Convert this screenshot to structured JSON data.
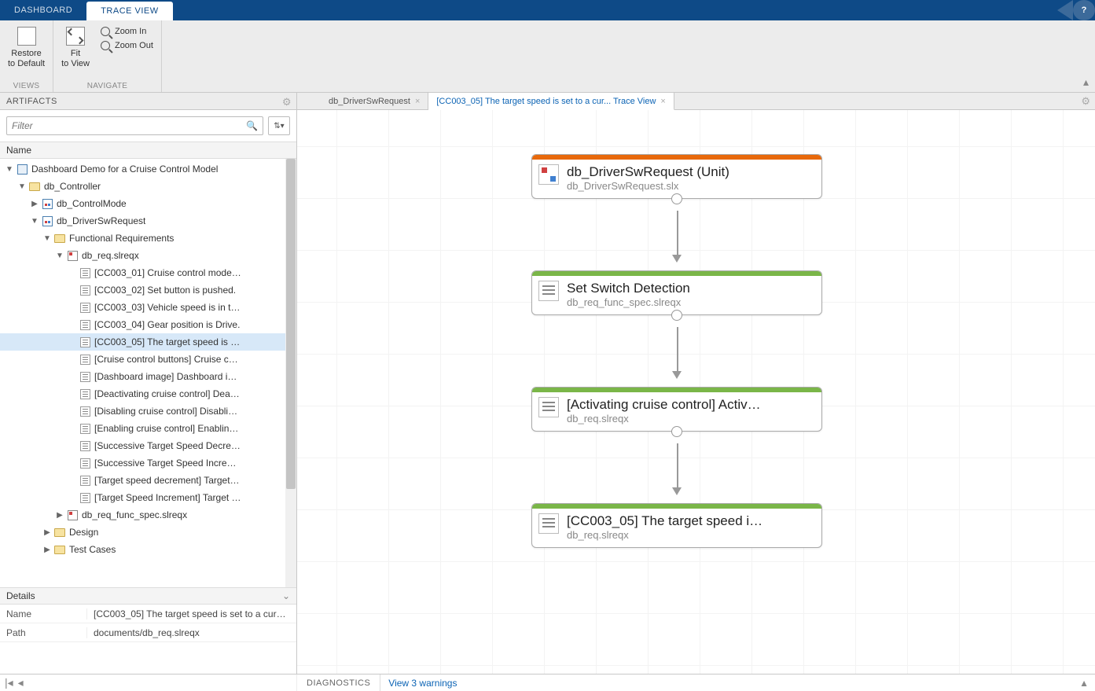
{
  "topTabs": {
    "dashboard": "DASHBOARD",
    "traceView": "TRACE VIEW"
  },
  "ribbon": {
    "restore": "Restore\nto Default",
    "fit": "Fit\nto View",
    "zoomIn": "Zoom In",
    "zoomOut": "Zoom Out",
    "viewsGroup": "VIEWS",
    "navigateGroup": "NAVIGATE"
  },
  "sidebar": {
    "header": "ARTIFACTS",
    "filterPlaceholder": "Filter",
    "nameCol": "Name",
    "tree": [
      {
        "indent": 0,
        "tw": "▼",
        "icon": "box",
        "label": "Dashboard Demo for a Cruise Control Model"
      },
      {
        "indent": 1,
        "tw": "▼",
        "icon": "folder",
        "label": "db_Controller"
      },
      {
        "indent": 2,
        "tw": "▶",
        "icon": "mdl",
        "label": "db_ControlMode"
      },
      {
        "indent": 2,
        "tw": "▼",
        "icon": "mdl",
        "label": "db_DriverSwRequest"
      },
      {
        "indent": 3,
        "tw": "▼",
        "icon": "folder",
        "label": "Functional Requirements"
      },
      {
        "indent": 4,
        "tw": "▼",
        "icon": "sl",
        "label": "db_req.slreqx"
      },
      {
        "indent": 5,
        "tw": "",
        "icon": "req",
        "label": "[CC003_01] Cruise control mode…"
      },
      {
        "indent": 5,
        "tw": "",
        "icon": "req",
        "label": "[CC003_02] Set button is pushed."
      },
      {
        "indent": 5,
        "tw": "",
        "icon": "req",
        "label": "[CC003_03] Vehicle speed is in t…"
      },
      {
        "indent": 5,
        "tw": "",
        "icon": "req",
        "label": "[CC003_04] Gear position is Drive."
      },
      {
        "indent": 5,
        "tw": "",
        "icon": "req",
        "label": "[CC003_05] The target speed is …",
        "selected": true
      },
      {
        "indent": 5,
        "tw": "",
        "icon": "req",
        "label": "[Cruise control buttons] Cruise c…"
      },
      {
        "indent": 5,
        "tw": "",
        "icon": "req",
        "label": "[Dashboard image] Dashboard i…"
      },
      {
        "indent": 5,
        "tw": "",
        "icon": "req",
        "label": "[Deactivating cruise control] Dea…"
      },
      {
        "indent": 5,
        "tw": "",
        "icon": "req",
        "label": "[Disabling cruise control] Disabli…"
      },
      {
        "indent": 5,
        "tw": "",
        "icon": "req",
        "label": "[Enabling cruise control] Enablin…"
      },
      {
        "indent": 5,
        "tw": "",
        "icon": "req",
        "label": "[Successive Target Speed Decre…"
      },
      {
        "indent": 5,
        "tw": "",
        "icon": "req",
        "label": "[Successive Target Speed Incre…"
      },
      {
        "indent": 5,
        "tw": "",
        "icon": "req",
        "label": "[Target speed decrement] Target…"
      },
      {
        "indent": 5,
        "tw": "",
        "icon": "req",
        "label": "[Target Speed Increment] Target …"
      },
      {
        "indent": 4,
        "tw": "▶",
        "icon": "sl",
        "label": "db_req_func_spec.slreqx"
      },
      {
        "indent": 3,
        "tw": "▶",
        "icon": "folder",
        "label": "Design"
      },
      {
        "indent": 3,
        "tw": "▶",
        "icon": "folder",
        "label": "Test Cases"
      }
    ],
    "details": {
      "header": "Details",
      "nameLabel": "Name",
      "nameValue": "[CC003_05] The target speed is set to a cur…",
      "pathLabel": "Path",
      "pathValue": "documents/db_req.slreqx"
    }
  },
  "docTabs": {
    "tab1": "db_DriverSwRequest",
    "tab2": "[CC003_05] The target speed is set to a cur... Trace View"
  },
  "nodes": {
    "n1": {
      "title": "db_DriverSwRequest (Unit)",
      "sub": "db_DriverSwRequest.slx"
    },
    "n2": {
      "title": "Set Switch Detection",
      "sub": "db_req_func_spec.slreqx"
    },
    "n3": {
      "title": "[Activating cruise control] Activ…",
      "sub": "db_req.slreqx"
    },
    "n4": {
      "title": "[CC003_05] The target speed i…",
      "sub": "db_req.slreqx"
    }
  },
  "status": {
    "diagnostics": "DIAGNOSTICS",
    "warnings": "View 3 warnings"
  },
  "colors": {
    "brandBlue": "#0e4a87",
    "link": "#0b63b4",
    "orange": "#e8690b",
    "green": "#7ab648",
    "selection": "#d7e8f8"
  }
}
